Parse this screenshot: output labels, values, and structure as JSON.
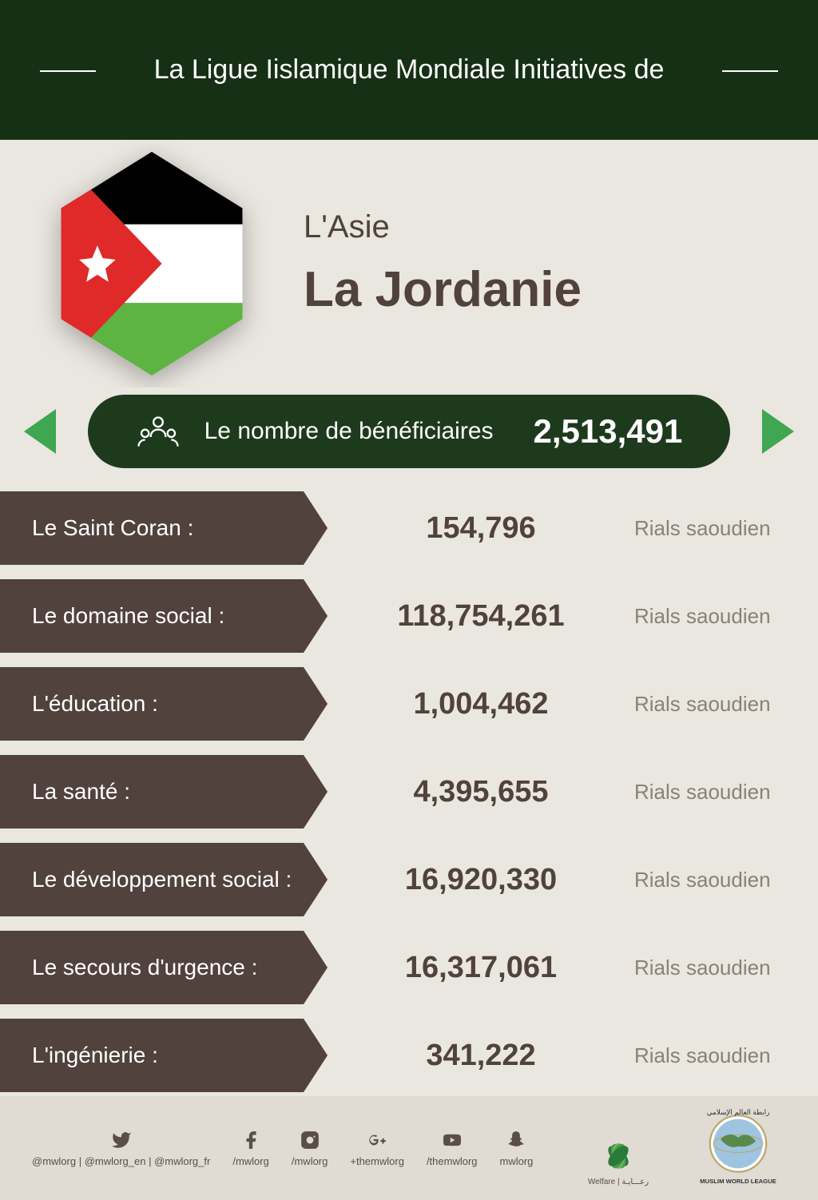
{
  "colors": {
    "header_bg": "#163015",
    "region_bg": "#eae6e0",
    "region_text": "#51423d",
    "bene_bg": "#eae6e0",
    "bene_pill": "#1e3a1d",
    "arrow_glow": "#3fa651",
    "row_bg": "#eae6e0",
    "row_label_bg": "#51423d",
    "row_value": "#51423d",
    "row_unit": "#8a8178",
    "footer_bg": "#e0dbd3",
    "body_bg": "#eae6e0",
    "flag_black": "#000000",
    "flag_white": "#ffffff",
    "flag_green": "#5db442",
    "flag_red": "#e02a2a"
  },
  "header": {
    "title": "La Ligue Iislamique Mondiale Initiatives de"
  },
  "region": {
    "continent": "L'Asie",
    "country": "La Jordanie"
  },
  "beneficiaries": {
    "label": "Le nombre de bénéficiaires",
    "value": "2,513,491"
  },
  "rows": [
    {
      "label": "Le Saint Coran :",
      "value": "154,796",
      "unit": "Rials saoudien"
    },
    {
      "label": "Le domaine social :",
      "value": "118,754,261",
      "unit": "Rials saoudien"
    },
    {
      "label": "L'éducation :",
      "value": "1,004,462",
      "unit": "Rials saoudien"
    },
    {
      "label": "La santé :",
      "value": "4,395,655",
      "unit": "Rials saoudien"
    },
    {
      "label": "Le développement social :",
      "value": "16,920,330",
      "unit": "Rials saoudien"
    },
    {
      "label": "Le secours d'urgence :",
      "value": "16,317,061",
      "unit": "Rials saoudien"
    },
    {
      "label": "L'ingénierie :",
      "value": "341,222",
      "unit": "Rials saoudien"
    }
  ],
  "social": [
    {
      "icon": "twitter",
      "handle": "@mwlorg  |  @mwlorg_en  |  @mwlorg_fr"
    },
    {
      "icon": "facebook",
      "handle": "/mwlorg"
    },
    {
      "icon": "instagram",
      "handle": "/mwlorg"
    },
    {
      "icon": "gplus",
      "handle": "+themwlorg"
    },
    {
      "icon": "youtube",
      "handle": "/themwlorg"
    },
    {
      "icon": "snapchat",
      "handle": "mwlorg"
    }
  ],
  "footer_logos": {
    "welfare_label": "Welfare | رعـــايـة",
    "mwl_label_ar": "رابطة العالم الإسلامي",
    "mwl_label_en": "MUSLIM WORLD LEAGUE"
  }
}
